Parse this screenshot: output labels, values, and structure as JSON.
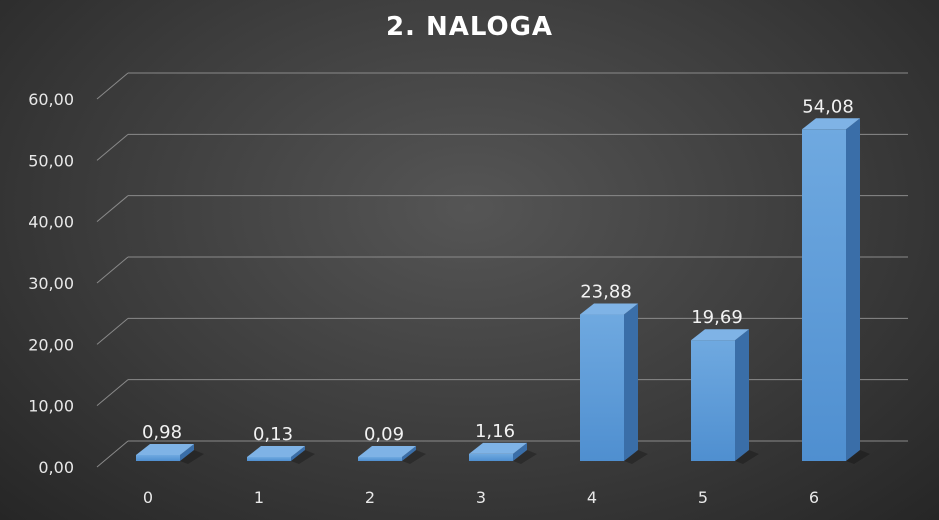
{
  "chart_data": {
    "type": "bar",
    "title": "2. NALOGA",
    "categories": [
      "0",
      "1",
      "2",
      "3",
      "4",
      "5",
      "6"
    ],
    "values": [
      0.98,
      0.13,
      0.09,
      1.16,
      23.88,
      19.69,
      54.08
    ],
    "value_labels": [
      "0,98",
      "0,13",
      "0,09",
      "1,16",
      "23,88",
      "19,69",
      "54,08"
    ],
    "yticks": [
      "0,00",
      "10,00",
      "20,00",
      "30,00",
      "40,00",
      "50,00",
      "60,00"
    ],
    "ylim": [
      0,
      60
    ],
    "grid": true,
    "style": "3d-column",
    "bar_color": "#5b9bd5"
  }
}
